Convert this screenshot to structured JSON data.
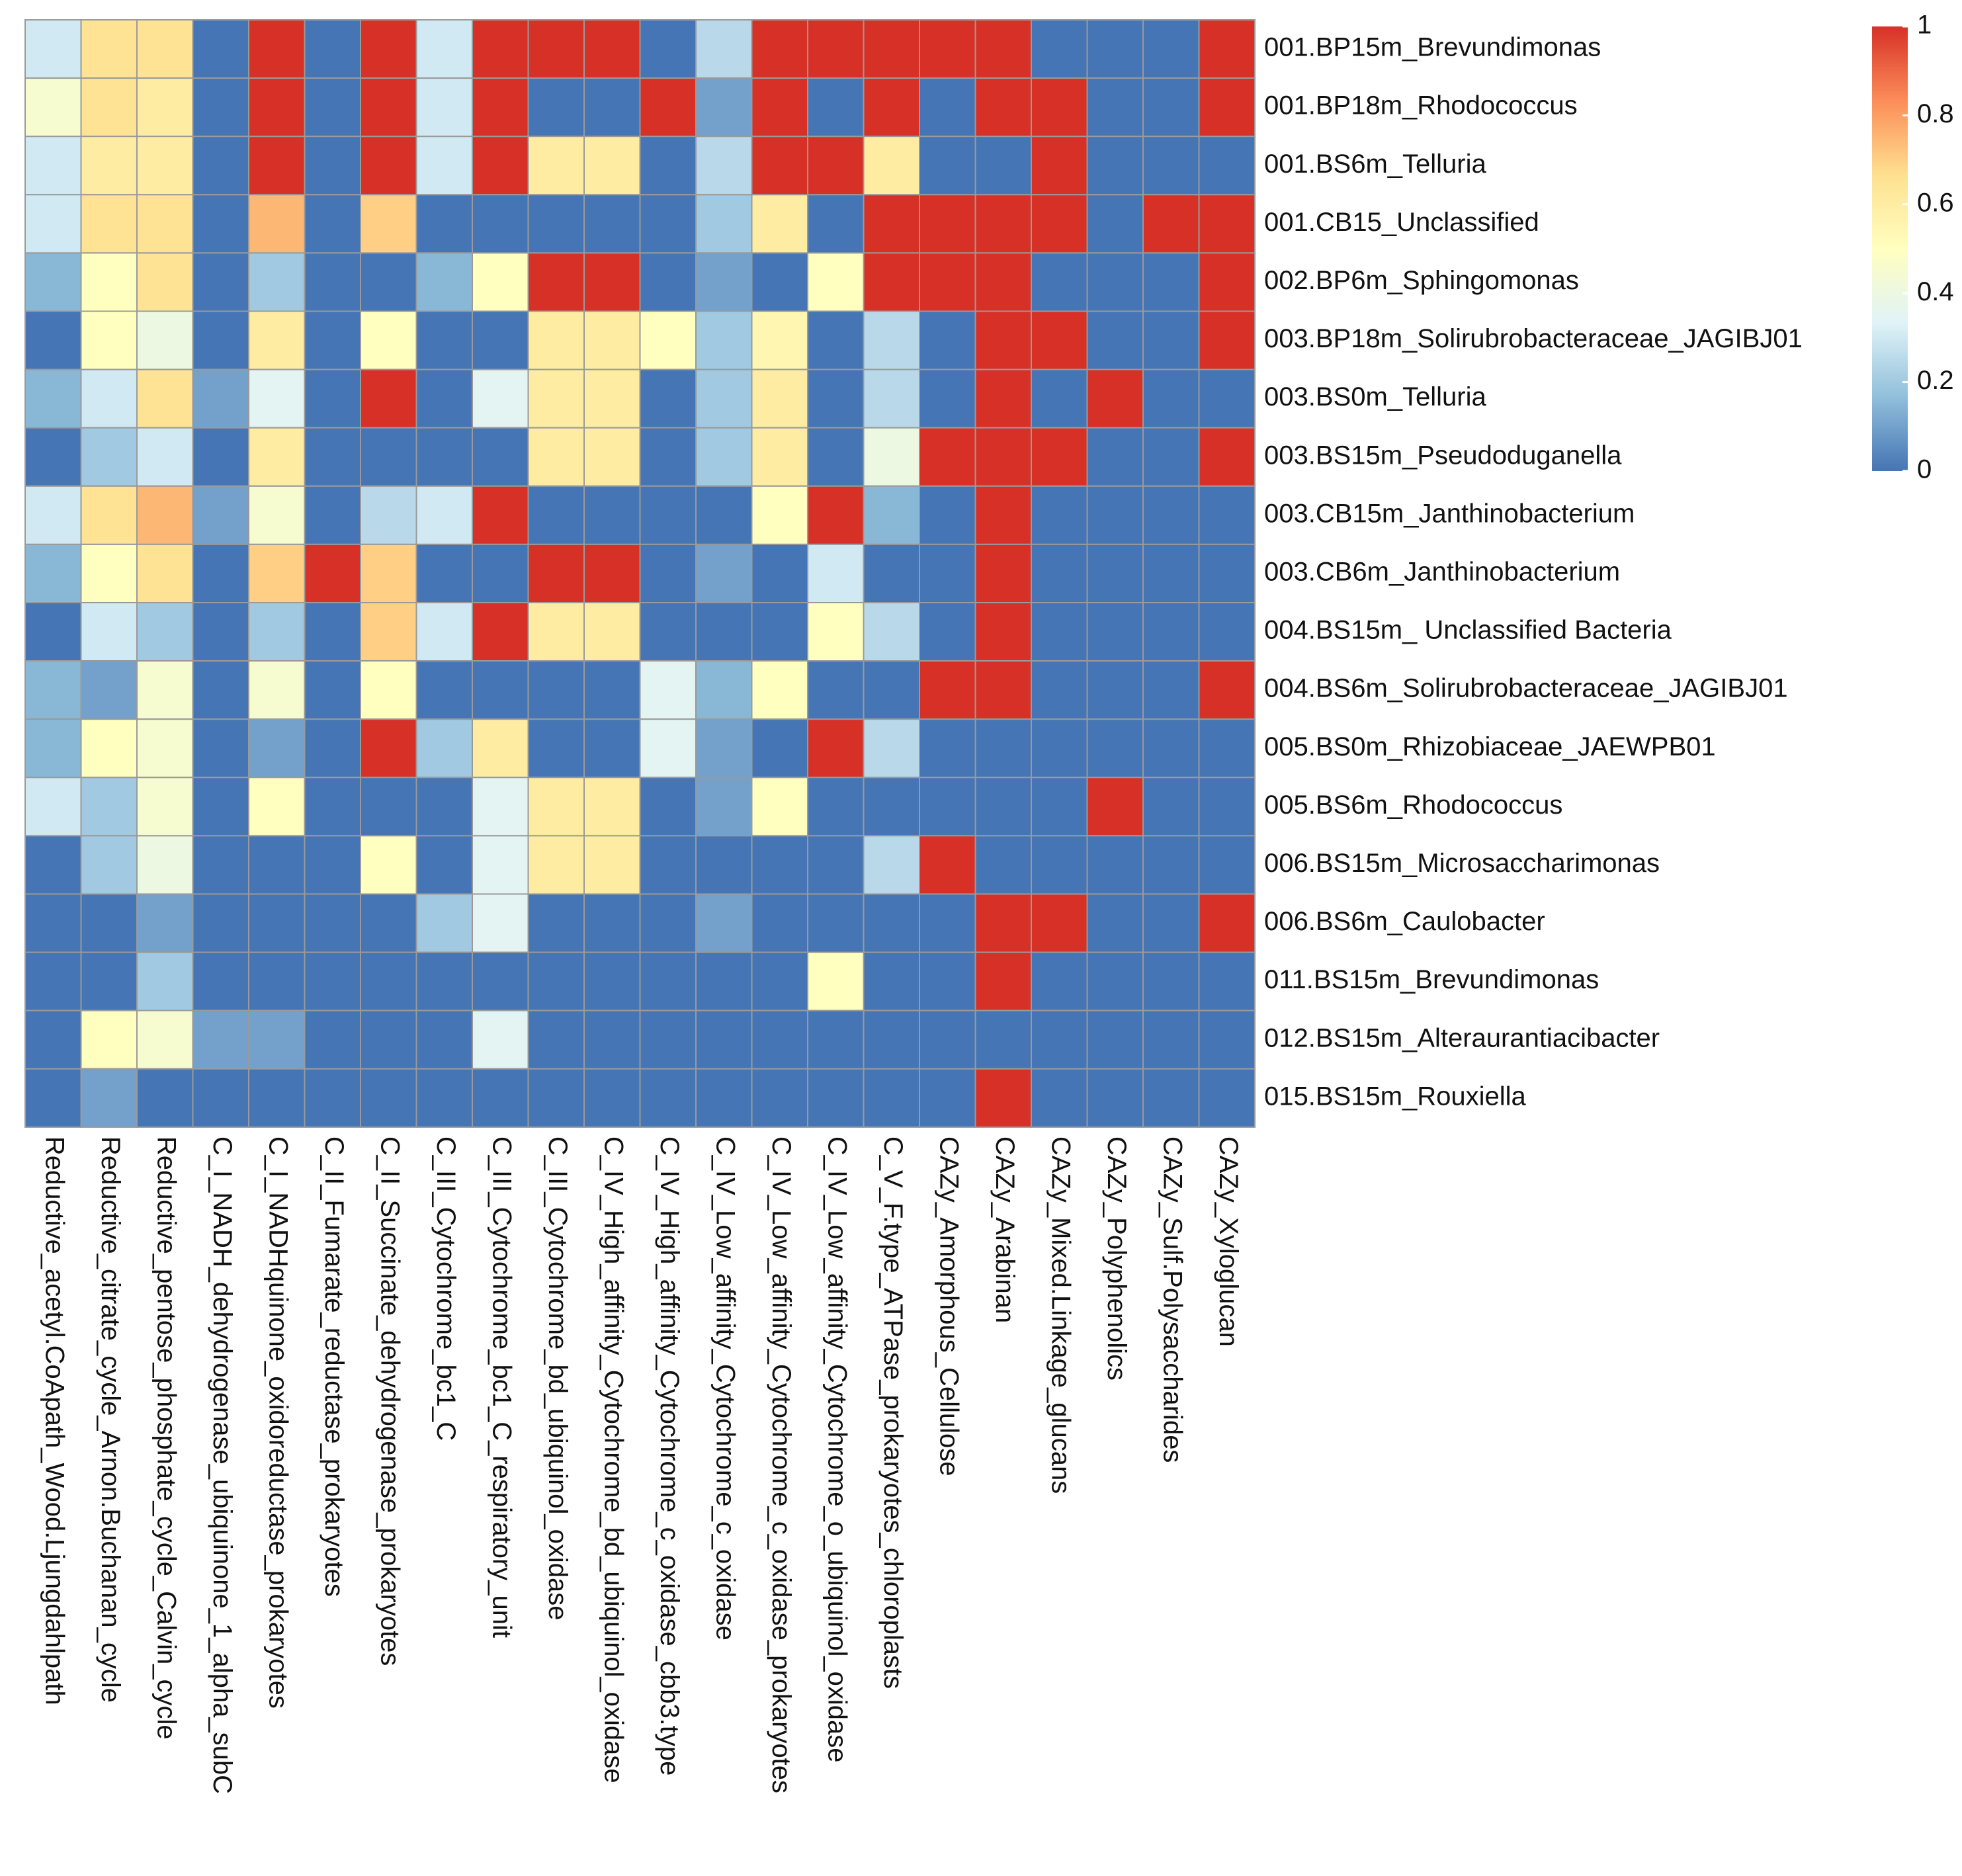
{
  "chart_data": {
    "type": "heatmap",
    "title": "",
    "rows": [
      "001.BP15m_Brevundimonas",
      "001.BP18m_Rhodococcus",
      "001.BS6m_Telluria",
      "001.CB15_Unclassified",
      "002.BP6m_Sphingomonas",
      "003.BP18m_Solirubrobacteraceae_JAGIBJ01",
      "003.BS0m_Telluria",
      "003.BS15m_Pseudoduganella",
      "003.CB15m_Janthinobacterium",
      "003.CB6m_Janthinobacterium",
      "004.BS15m_ Unclassified Bacteria",
      "004.BS6m_Solirubrobacteraceae_JAGIBJ01",
      "005.BS0m_Rhizobiaceae_JAEWPB01",
      "005.BS6m_Rhodococcus",
      "006.BS15m_Microsaccharimonas",
      "006.BS6m_Caulobacter",
      "011.BS15m_Brevundimonas",
      "012.BS15m_Alteraurantiacibacter",
      "015.BS15m_Rouxiella"
    ],
    "columns": [
      "Reductive_acetyl.CoApath_Wood.Ljungdahlpath",
      "Reductive_citrate_cycle_Arnon.Buchanan_cycle",
      "Reductive_pentose_phosphate_cycle_Calvin_cycle",
      "C_I_NADH_dehydrogenase_ubiquinone_1_alpha_subC",
      "C_I_NADHquinone_oxidoreductase_prokaryotes",
      "C_II_Fumarate_reductase_prokaryotes",
      "C_II_Succinate_dehydrogenase_prokaryotes",
      "C_III_Cytochrome_bc1_C",
      "C_III_Cytochrome_bc1_C_respiratory_unit",
      "C_III_Cytochrome_bd_ubiquinol_oxidase",
      "C_IV_High_affinity_Cytochrome_bd_ubiquinol_oxidase",
      "C_IV_High_affinity_Cytochrome_c_oxidase_cbb3.type",
      "C_IV_Low_affinity_Cytochrome_c_oxidase",
      "C_IV_Low_affinity_Cytochrome_c_oxidase_prokaryotes",
      "C_IV_Low_affinity_Cytochrome_o_ubiquinol_oxidase",
      "C_V_F.type_ATPase_prokaryotes_chloroplasts",
      "CAZy_Amorphous_Cellulose",
      "CAZy_Arabinan",
      "CAZy_Mixed.Linkage_glucans",
      "CAZy_Polyphenolics",
      "CAZy_Sulf.Polysaccharides",
      "CAZy_Xyloglucan"
    ],
    "values": [
      [
        0.3,
        0.65,
        0.65,
        0,
        1,
        0,
        1,
        0.3,
        1,
        1,
        1,
        0,
        0.25,
        1,
        1,
        1,
        1,
        1,
        0,
        0,
        0,
        1
      ],
      [
        0.45,
        0.65,
        0.6,
        0,
        1,
        0,
        1,
        0.3,
        1,
        0,
        0,
        1,
        0.1,
        1,
        0,
        1,
        0,
        1,
        1,
        0,
        0,
        1
      ],
      [
        0.3,
        0.6,
        0.6,
        0,
        1,
        0,
        1,
        0.3,
        1,
        0.6,
        0.6,
        0,
        0.25,
        1,
        1,
        0.6,
        0,
        0,
        1,
        0,
        0,
        0
      ],
      [
        0.3,
        0.65,
        0.65,
        0,
        0.75,
        0,
        0.7,
        0,
        0,
        0,
        0,
        0,
        0.2,
        0.6,
        0,
        1,
        1,
        1,
        1,
        0,
        1,
        1
      ],
      [
        0.15,
        0.5,
        0.65,
        0,
        0.2,
        0,
        0,
        0.15,
        0.5,
        1,
        1,
        0,
        0.1,
        0,
        0.5,
        1,
        1,
        1,
        0,
        0,
        0,
        1
      ],
      [
        0,
        0.5,
        0.4,
        0,
        0.6,
        0,
        0.5,
        0,
        0,
        0.6,
        0.6,
        0.5,
        0.2,
        0.55,
        0,
        0.25,
        0,
        1,
        1,
        0,
        0,
        1
      ],
      [
        0.15,
        0.3,
        0.65,
        0.1,
        0.35,
        0,
        1,
        0,
        0.35,
        0.6,
        0.6,
        0,
        0.2,
        0.6,
        0,
        0.25,
        0,
        1,
        0,
        1,
        0,
        0
      ],
      [
        0,
        0.2,
        0.3,
        0,
        0.6,
        0,
        0,
        0,
        0,
        0.6,
        0.6,
        0,
        0.2,
        0.6,
        0,
        0.4,
        1,
        1,
        1,
        0,
        0,
        1
      ],
      [
        0.3,
        0.65,
        0.75,
        0.1,
        0.45,
        0,
        0.25,
        0.3,
        1,
        0,
        0,
        0,
        0,
        0.5,
        1,
        0.15,
        0,
        1,
        0,
        0,
        0,
        0
      ],
      [
        0.15,
        0.5,
        0.65,
        0,
        0.7,
        1,
        0.7,
        0,
        0,
        1,
        1,
        0,
        0.1,
        0,
        0.3,
        0,
        0,
        1,
        0,
        0,
        0,
        0
      ],
      [
        0,
        0.3,
        0.2,
        0,
        0.2,
        0,
        0.7,
        0.3,
        1,
        0.6,
        0.6,
        0,
        0,
        0,
        0.5,
        0.25,
        0,
        1,
        0,
        0,
        0,
        0
      ],
      [
        0.15,
        0.1,
        0.45,
        0,
        0.45,
        0,
        0.5,
        0,
        0,
        0,
        0,
        0.35,
        0.15,
        0.5,
        0,
        0,
        1,
        1,
        0,
        0,
        0,
        1
      ],
      [
        0.15,
        0.5,
        0.45,
        0,
        0.1,
        0,
        1,
        0.2,
        0.6,
        0,
        0,
        0.35,
        0.1,
        0,
        1,
        0.25,
        0,
        0,
        0,
        0,
        0,
        0
      ],
      [
        0.3,
        0.2,
        0.45,
        0,
        0.5,
        0,
        0,
        0,
        0.35,
        0.6,
        0.6,
        0,
        0.1,
        0.5,
        0,
        0,
        0,
        0,
        0,
        1,
        0,
        0
      ],
      [
        0,
        0.2,
        0.4,
        0,
        0,
        0,
        0.5,
        0,
        0.35,
        0.6,
        0.6,
        0,
        0,
        0,
        0,
        0.25,
        1,
        0,
        0,
        0,
        0,
        0
      ],
      [
        0,
        0,
        0.1,
        0,
        0,
        0,
        0,
        0.2,
        0.35,
        0,
        0,
        0,
        0.1,
        0,
        0,
        0,
        0,
        1,
        1,
        0,
        0,
        1
      ],
      [
        0,
        0,
        0.2,
        0,
        0,
        0,
        0,
        0,
        0,
        0,
        0,
        0,
        0,
        0,
        0.5,
        0,
        0,
        1,
        0,
        0,
        0,
        0
      ],
      [
        0,
        0.5,
        0.45,
        0.1,
        0.1,
        0,
        0,
        0,
        0.35,
        0,
        0,
        0,
        0,
        0,
        0,
        0,
        0,
        0,
        0,
        0,
        0,
        0
      ],
      [
        0,
        0.1,
        0,
        0,
        0,
        0,
        0,
        0,
        0,
        0,
        0,
        0,
        0,
        0,
        0,
        0,
        0,
        1,
        0,
        0,
        0,
        0
      ]
    ],
    "value_range": [
      0,
      1
    ],
    "legend": {
      "position": "top-right",
      "ticks": [
        "0",
        "0.2",
        "0.4",
        "0.6",
        "0.8",
        "1"
      ],
      "colors": [
        "#4575b4",
        "#91bfdb",
        "#e0f3f8",
        "#ffffbf",
        "#fee090",
        "#fc8d59",
        "#d73027"
      ]
    },
    "grid": true,
    "cell_border_color": "#9a9a9a",
    "xlabel": "",
    "ylabel": ""
  }
}
